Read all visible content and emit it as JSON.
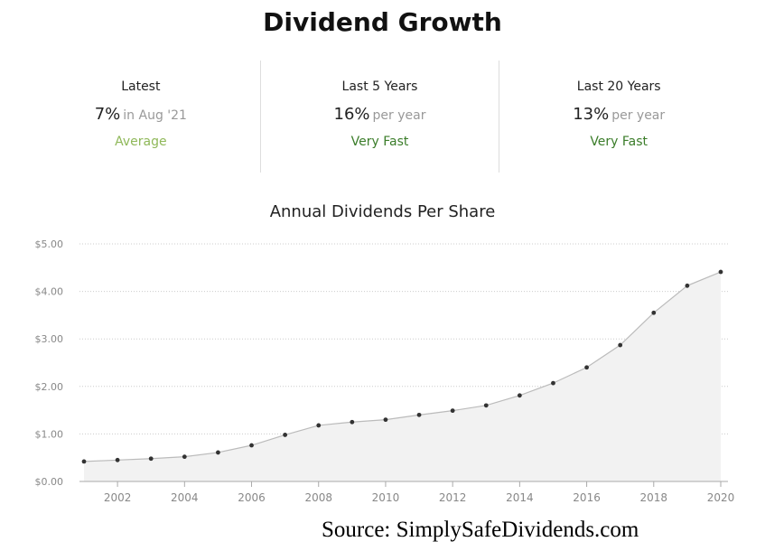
{
  "title": "Dividend Growth",
  "stats": [
    {
      "label": "Latest",
      "value": "7%",
      "sub": "in Aug '21",
      "rating": "Average",
      "rating_color": "#8fb859"
    },
    {
      "label": "Last 5 Years",
      "value": "16%",
      "sub": "per year",
      "rating": "Very Fast",
      "rating_color": "#3b7d2a"
    },
    {
      "label": "Last 20 Years",
      "value": "13%",
      "sub": "per year",
      "rating": "Very Fast",
      "rating_color": "#3b7d2a"
    }
  ],
  "chart_data": {
    "type": "area",
    "title": "Annual Dividends Per Share",
    "xlabel": "",
    "ylabel": "",
    "x": [
      2001,
      2002,
      2003,
      2004,
      2005,
      2006,
      2007,
      2008,
      2009,
      2010,
      2011,
      2012,
      2013,
      2014,
      2015,
      2016,
      2017,
      2018,
      2019,
      2020
    ],
    "values": [
      0.42,
      0.45,
      0.48,
      0.52,
      0.61,
      0.76,
      0.98,
      1.18,
      1.25,
      1.3,
      1.4,
      1.49,
      1.6,
      1.81,
      2.07,
      2.4,
      2.87,
      3.55,
      4.12,
      4.41
    ],
    "xlim": [
      2001,
      2020
    ],
    "ylim": [
      0,
      5
    ],
    "x_ticks": [
      "2002",
      "2004",
      "2006",
      "2008",
      "2010",
      "2012",
      "2014",
      "2016",
      "2018",
      "2020"
    ],
    "y_ticks": [
      "$0.00",
      "$1.00",
      "$2.00",
      "$3.00",
      "$4.00",
      "$5.00"
    ],
    "grid": true,
    "colors": {
      "line": "#bbbbbb",
      "fill": "#f2f2f2",
      "marker": "#333333",
      "grid": "#cccccc",
      "tick_text": "#888888"
    }
  },
  "source": "Source: SimplySafeDividends.com"
}
